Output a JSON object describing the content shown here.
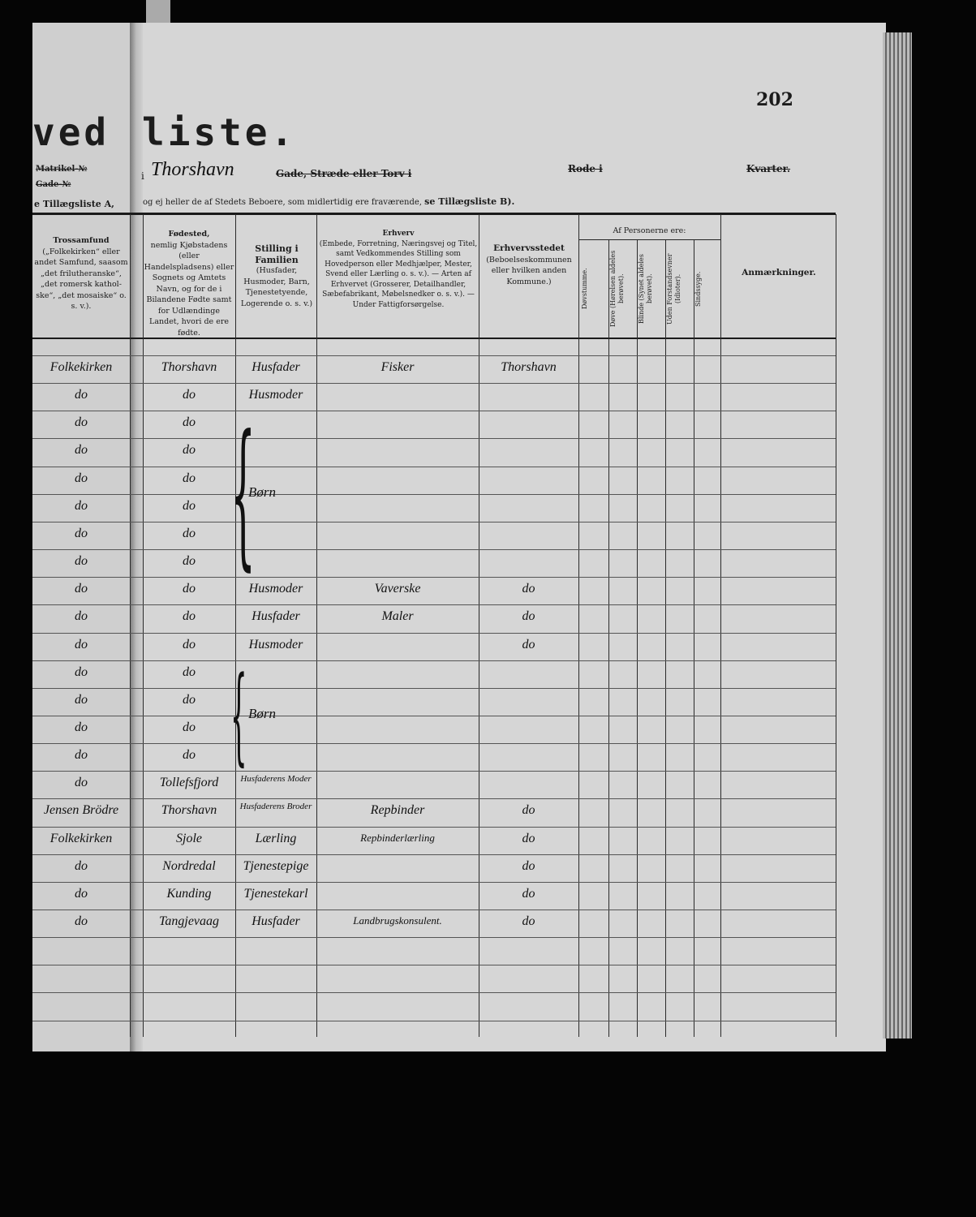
{
  "page_number": "202",
  "title_left": "ved",
  "title_right": "liste.",
  "left_page": {
    "matrikel_label": "Matrikel-№",
    "gade_label": "Gade-№",
    "tillaeg_text": "e Tillægsliste A,"
  },
  "address": {
    "prefix": "i",
    "street_handwritten": "Thorshavn",
    "street_label": "Gade, Stræde eller Torv i",
    "rode_label": "Rode i",
    "kvarter_label": "Kvarter."
  },
  "instruction": {
    "text": "og ej heller de af Stedets Beboere, som midlertidig ere fraværende,",
    "emphasis": "se Tillægsliste B)."
  },
  "columns": {
    "tros": {
      "title": "Trossamfund",
      "desc": "(„Folkekirken“ eller andet Samfund, saasom „det frilutheranske“, „det romersk kathol-ske“, „det mosaiske“ o. s. v.)."
    },
    "fodested": {
      "title": "Fødested,",
      "desc": "nemlig Kjøbstadens (eller Handelspladsens) eller Sognets og Amtets Navn, og for de i Bilandene Fødte samt for Udlændinge Landet, hvori de ere fødte."
    },
    "stilling": {
      "title": "Stilling i Familien",
      "desc": "(Husfader, Husmoder, Barn, Tjenestetyende, Logerende o. s. v.)"
    },
    "erhverv": {
      "title": "Erhverv",
      "desc": "(Embede, Forretning, Næringsvej og Titel, samt Vedkommendes Stilling som Hovedperson eller Medhjælper, Mester, Svend eller Lærling o. s. v.). — Arten af Erhvervet (Grosserer, Detailhandler, Sæbefabrikant, Møbelsnedker o. s. v.). — Under Fattigforsørgelse."
    },
    "erhvervsstedet": {
      "title": "Erhvervsstedet",
      "desc": "(Beboelseskommunen eller hvilken anden Kommune.)"
    },
    "af_personerne": {
      "title": "Af Personerne ere:",
      "sub": [
        "Døvstumme.",
        "Døve (Hørelsen aldeles berøvet).",
        "Blinde (Synet aldeles berøvet).",
        "Uden Forstandsevner (Idioter).",
        "Sindssyge."
      ]
    },
    "anmaerkninger": {
      "title": "Anmærkninger."
    }
  },
  "rows": [
    {
      "tros": "Folkekirken",
      "fodested": "Thorshavn",
      "stilling": "Husfader",
      "erhverv": "Fisker",
      "sted": "Thorshavn"
    },
    {
      "tros": "do",
      "fodested": "do",
      "stilling": "Husmoder",
      "erhverv": "",
      "sted": ""
    },
    {
      "tros": "do",
      "fodested": "do",
      "stilling": "",
      "erhverv": "",
      "sted": ""
    },
    {
      "tros": "do",
      "fodested": "do",
      "stilling": "",
      "erhverv": "",
      "sted": ""
    },
    {
      "tros": "do",
      "fodested": "do",
      "stilling": "",
      "erhverv": "",
      "sted": ""
    },
    {
      "tros": "do",
      "fodested": "do",
      "stilling": "",
      "erhverv": "",
      "sted": ""
    },
    {
      "tros": "do",
      "fodested": "do",
      "stilling": "",
      "erhverv": "",
      "sted": ""
    },
    {
      "tros": "do",
      "fodested": "do",
      "stilling": "",
      "erhverv": "",
      "sted": ""
    },
    {
      "tros": "do",
      "fodested": "do",
      "stilling": "Husmoder",
      "erhverv": "Vaverske",
      "sted": "do"
    },
    {
      "tros": "do",
      "fodested": "do",
      "stilling": "Husfader",
      "erhverv": "Maler",
      "sted": "do"
    },
    {
      "tros": "do",
      "fodested": "do",
      "stilling": "Husmoder",
      "erhverv": "",
      "sted": "do"
    },
    {
      "tros": "do",
      "fodested": "do",
      "stilling": "",
      "erhverv": "",
      "sted": ""
    },
    {
      "tros": "do",
      "fodested": "do",
      "stilling": "",
      "erhverv": "",
      "sted": ""
    },
    {
      "tros": "do",
      "fodested": "do",
      "stilling": "",
      "erhverv": "",
      "sted": ""
    },
    {
      "tros": "do",
      "fodested": "do",
      "stilling": "",
      "erhverv": "",
      "sted": ""
    },
    {
      "tros": "do",
      "fodested": "Tollefsfjord",
      "stilling": "Husfaderens Moder",
      "erhverv": "",
      "sted": ""
    },
    {
      "tros": "Jensen Brödre",
      "fodested": "Thorshavn",
      "stilling": "Husfaderens Broder",
      "erhverv": "Repbinder",
      "sted": "do"
    },
    {
      "tros": "Folkekirken",
      "fodested": "Sjole",
      "stilling": "Lærling",
      "erhverv": "Repbinderlærling",
      "sted": "do"
    },
    {
      "tros": "do",
      "fodested": "Nordredal",
      "stilling": "Tjenestepige",
      "erhverv": "",
      "sted": "do"
    },
    {
      "tros": "do",
      "fodested": "Kunding",
      "stilling": "Tjenestekarl",
      "erhverv": "",
      "sted": "do"
    },
    {
      "tros": "do",
      "fodested": "Tangjevaag",
      "stilling": "Husfader",
      "erhverv": "Landbrugskonsulent.",
      "sted": "do"
    }
  ],
  "groups": [
    {
      "label": "Børn",
      "from_row": 3,
      "to_row": 8
    },
    {
      "label": "Børn",
      "from_row": 12,
      "to_row": 15
    }
  ]
}
